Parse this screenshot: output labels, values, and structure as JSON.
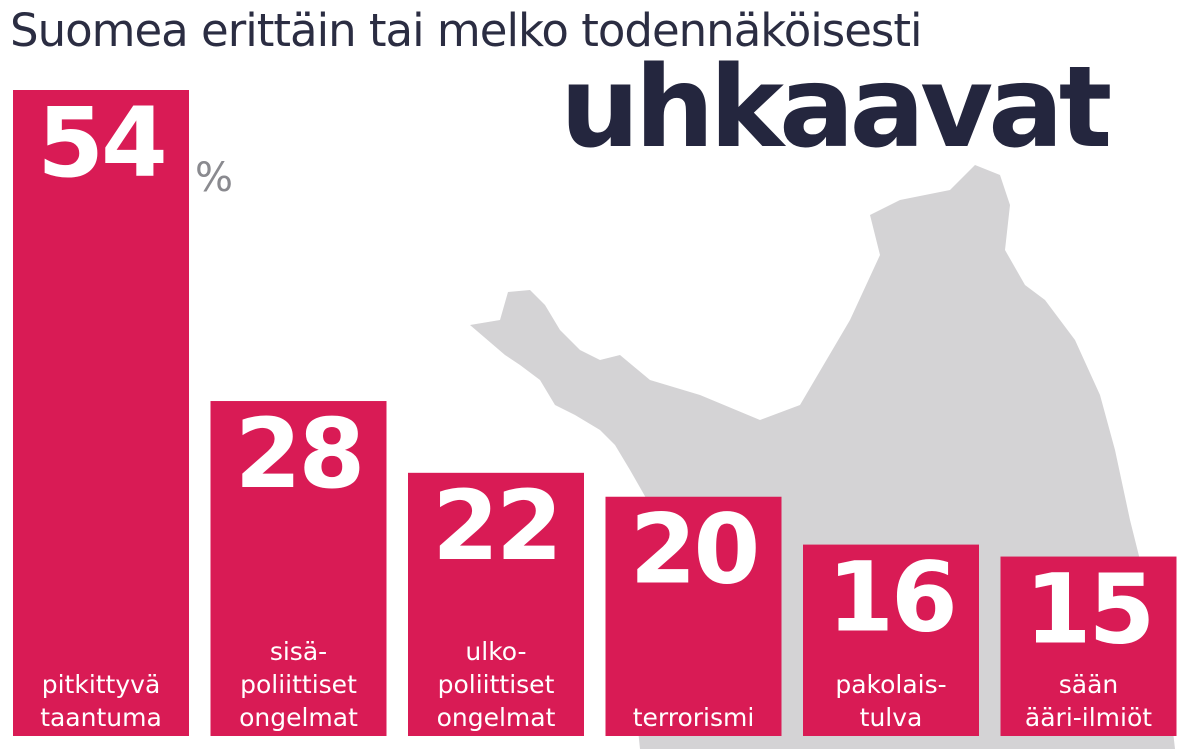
{
  "title_line": "Suomea erittäin tai melko todennäköisesti",
  "title_emphasis": "uhkaavat",
  "unit": "%",
  "colors": {
    "bar": "#d91b55",
    "map": "#d4d3d5",
    "title": "#24263e",
    "unit": "#8a8a8f"
  },
  "chart_data": {
    "type": "bar",
    "categories": [
      [
        "pitkittyvä",
        "taantuma"
      ],
      [
        "sisä-",
        "poliittiset",
        "ongelmat"
      ],
      [
        "ulko-",
        "poliittiset",
        "ongelmat"
      ],
      [
        "terrorismi"
      ],
      [
        "pakolais-",
        "tulva"
      ],
      [
        "sään",
        "ääri-ilmiöt"
      ]
    ],
    "values": [
      54,
      28,
      22,
      20,
      16,
      15
    ],
    "value_labels": [
      "54",
      "28",
      "22",
      "20",
      "16",
      "15"
    ],
    "unit": "%",
    "ylim": [
      0,
      54
    ],
    "grid": false,
    "legend": "none",
    "title": "Suomea erittäin tai melko todennäköisesti uhkaavat"
  }
}
